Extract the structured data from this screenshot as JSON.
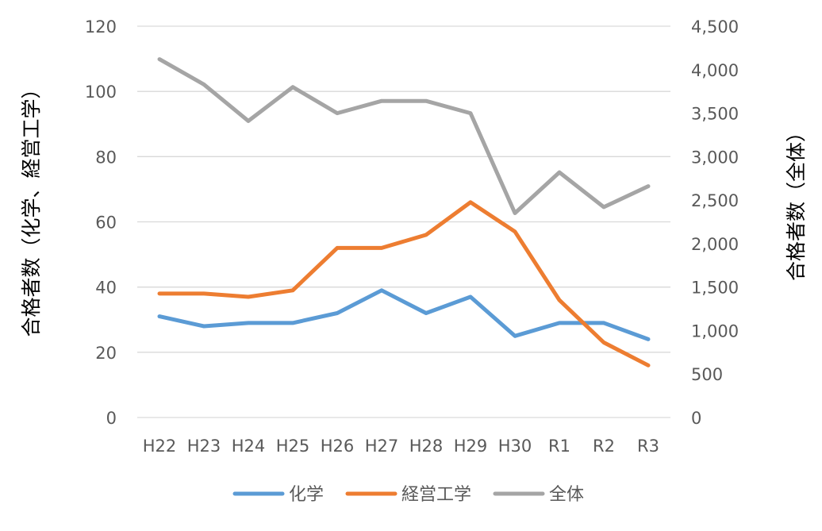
{
  "chart_data": {
    "type": "line",
    "categories": [
      "H22",
      "H23",
      "H24",
      "H25",
      "H26",
      "H27",
      "H28",
      "H29",
      "H30",
      "R1",
      "R2",
      "R3"
    ],
    "y_left": {
      "label": "合格者数（化学、経営工学）",
      "ylim": [
        0,
        120
      ],
      "ticks": [
        "0",
        "20",
        "40",
        "60",
        "80",
        "100",
        "120"
      ]
    },
    "y_right": {
      "label": "合格者数（全体）",
      "ylim": [
        0,
        4500
      ],
      "ticks": [
        "0",
        "500",
        "1,000",
        "1,500",
        "2,000",
        "2,500",
        "3,000",
        "3,500",
        "4,000",
        "4,500"
      ]
    },
    "series": [
      {
        "name": "化学",
        "axis": "left",
        "color": "#5B9BD5",
        "values": [
          31,
          28,
          29,
          29,
          32,
          39,
          32,
          37,
          25,
          29,
          29,
          24
        ]
      },
      {
        "name": "経営工学",
        "axis": "left",
        "color": "#ED7D31",
        "values": [
          38,
          38,
          37,
          39,
          52,
          52,
          56,
          66,
          57,
          36,
          23,
          16
        ]
      },
      {
        "name": "全体",
        "axis": "right",
        "color": "#A5A5A5",
        "values": [
          4120,
          3830,
          3410,
          3800,
          3500,
          3640,
          3640,
          3500,
          2350,
          2820,
          2420,
          2660
        ]
      }
    ],
    "grid": true,
    "legend": "bottom"
  }
}
